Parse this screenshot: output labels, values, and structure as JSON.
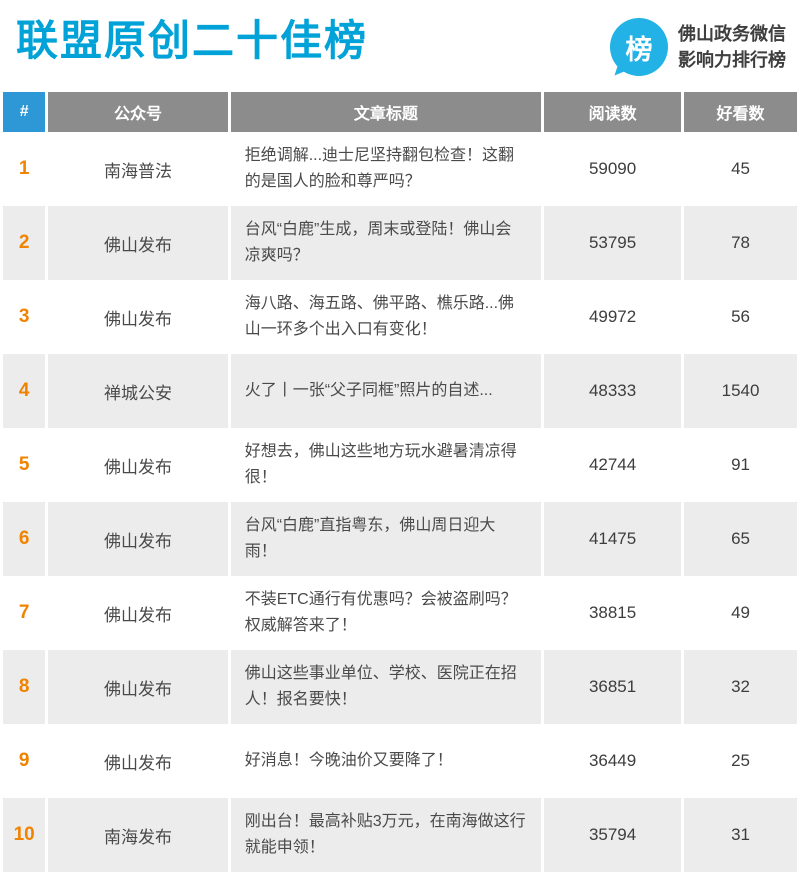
{
  "title": "联盟原创二十佳榜",
  "brand": {
    "badge_char": "榜",
    "label_line1": "佛山政务微信",
    "label_line2": "影响力排行榜"
  },
  "colors": {
    "title_cyan": "#00a2d8",
    "badge_cyan": "#22b2e6",
    "header_gray": "#8c8c8c",
    "header_blue": "#2e97d5",
    "rank_orange": "#f08300",
    "row_alt_gray": "#ececec"
  },
  "table": {
    "headers": {
      "rank": "#",
      "account": "公众号",
      "title": "文章标题",
      "reads": "阅读数",
      "likes": "好看数"
    },
    "rows": [
      {
        "rank": "1",
        "account": "南海普法",
        "title": "拒绝调解...迪士尼坚持翻包检查！这翻的是国人的脸和尊严吗？",
        "reads": "59090",
        "likes": "45"
      },
      {
        "rank": "2",
        "account": "佛山发布",
        "title": "台风“白鹿”生成，周末或登陆！佛山会凉爽吗？",
        "reads": "53795",
        "likes": "78"
      },
      {
        "rank": "3",
        "account": "佛山发布",
        "title": "海八路、海五路、佛平路、樵乐路...佛山一环多个出入口有变化！",
        "reads": "49972",
        "likes": "56"
      },
      {
        "rank": "4",
        "account": "禅城公安",
        "title": "火了丨一张“父子同框”照片的自述...",
        "reads": "48333",
        "likes": "1540"
      },
      {
        "rank": "5",
        "account": "佛山发布",
        "title": "好想去，佛山这些地方玩水避暑清凉得很！",
        "reads": "42744",
        "likes": "91"
      },
      {
        "rank": "6",
        "account": "佛山发布",
        "title": "台风“白鹿”直指粤东，佛山周日迎大雨！",
        "reads": "41475",
        "likes": "65"
      },
      {
        "rank": "7",
        "account": "佛山发布",
        "title": "不装ETC通行有优惠吗？会被盗刷吗？权威解答来了！",
        "reads": "38815",
        "likes": "49"
      },
      {
        "rank": "8",
        "account": "佛山发布",
        "title": "佛山这些事业单位、学校、医院正在招人！报名要快！",
        "reads": "36851",
        "likes": "32"
      },
      {
        "rank": "9",
        "account": "佛山发布",
        "title": "好消息！今晚油价又要降了！",
        "reads": "36449",
        "likes": "25"
      },
      {
        "rank": "10",
        "account": "南海发布",
        "title": "刚出台！最高补贴3万元，在南海做这行就能申领！",
        "reads": "35794",
        "likes": "31"
      }
    ]
  }
}
